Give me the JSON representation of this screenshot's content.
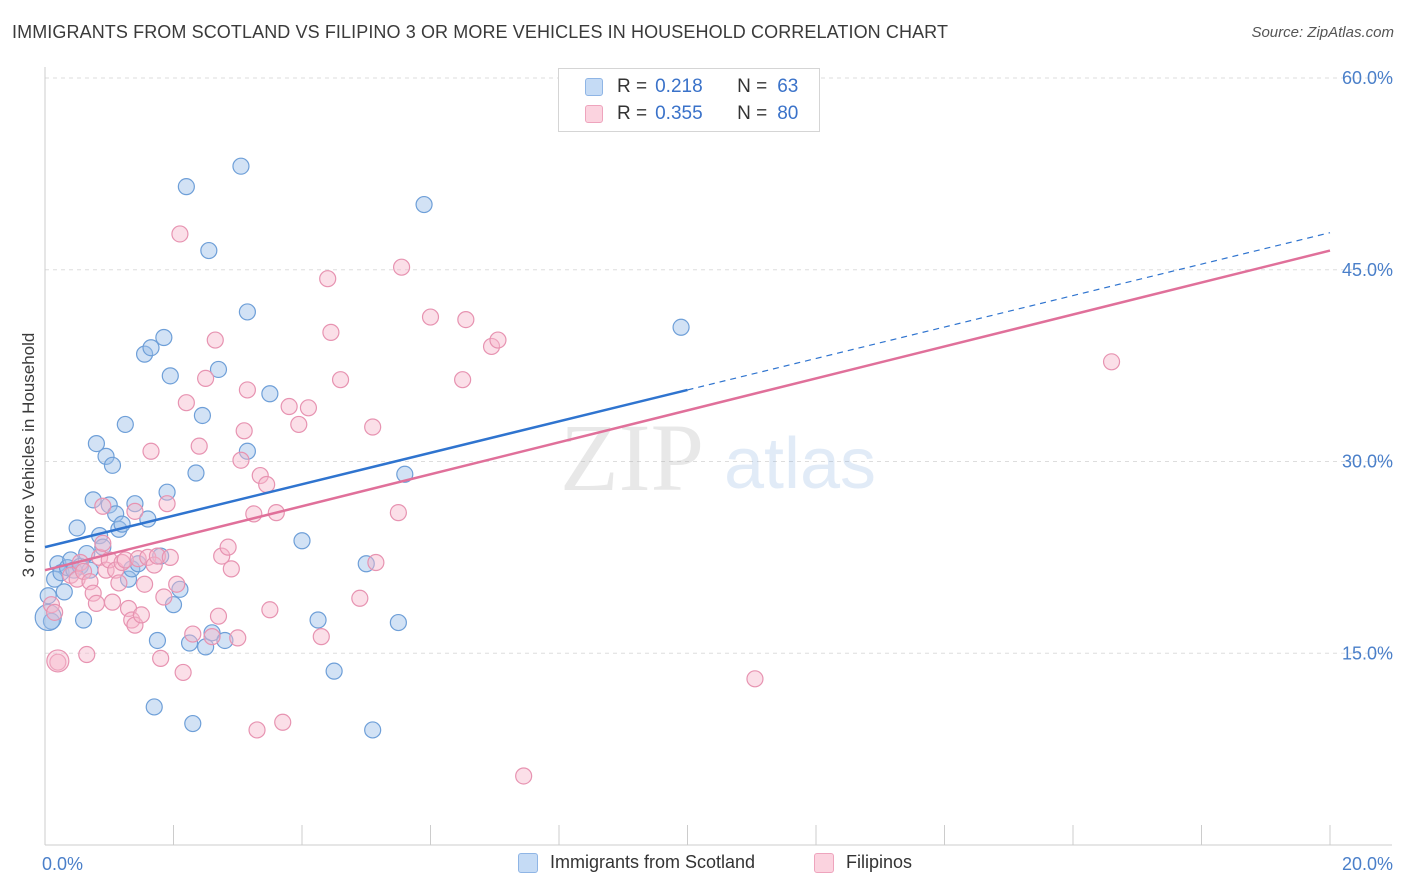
{
  "header": {
    "title": "IMMIGRANTS FROM SCOTLAND VS FILIPINO 3 OR MORE VEHICLES IN HOUSEHOLD CORRELATION CHART",
    "source": "Source: ZipAtlas.com"
  },
  "watermark": {
    "zip": "ZIP",
    "atlas": "atlas"
  },
  "legend": {
    "rows": [
      {
        "r_label": "R =",
        "r_value": "0.218",
        "n_label": "N =",
        "n_value": "63",
        "color": "#9bbfe9"
      },
      {
        "r_label": "R =",
        "r_value": "0.355",
        "n_label": "N =",
        "n_value": "80",
        "color": "#f3afc5"
      }
    ]
  },
  "bottom_legend": {
    "items": [
      {
        "label": "Immigrants from Scotland",
        "color": "#9bbfe9"
      },
      {
        "label": "Filipinos",
        "color": "#f3afc5"
      }
    ]
  },
  "colors": {
    "blue_fill": "#9bbfe9",
    "blue_stroke": "#6e9fd8",
    "blue_line": "#2f74cf",
    "pink_fill": "#f6b9cd",
    "pink_stroke": "#e793b1",
    "pink_line": "#e0709a",
    "tick_text": "#4a7fc9",
    "grid": "#dddddd"
  },
  "chart_data": {
    "type": "scatter",
    "title": "IMMIGRANTS FROM SCOTLAND VS FILIPINO 3 OR MORE VEHICLES IN HOUSEHOLD CORRELATION CHART",
    "ylabel": "3 or more Vehicles in Household",
    "xlabel": "",
    "xlim": [
      0,
      20
    ],
    "ylim": [
      0,
      60
    ],
    "x_tick_labels": [
      "0.0%",
      "20.0%"
    ],
    "y_ticks": [
      15,
      30,
      45,
      60
    ],
    "y_tick_labels": [
      "15.0%",
      "30.0%",
      "45.0%",
      "60.0%"
    ],
    "grid": true,
    "legend_position": "top-center",
    "series": [
      {
        "name": "Immigrants from Scotland",
        "r": 0.218,
        "n": 63,
        "trend": {
          "x0": 0,
          "y0": 23.3,
          "x1": 20,
          "y1": 47.9,
          "solid_until_x": 10
        },
        "points": [
          [
            0.05,
            19.5
          ],
          [
            0.1,
            17.5
          ],
          [
            0.15,
            20.8
          ],
          [
            0.2,
            22.0
          ],
          [
            0.25,
            21.3
          ],
          [
            0.3,
            19.8
          ],
          [
            0.35,
            21.7
          ],
          [
            0.4,
            22.3
          ],
          [
            0.45,
            21.5
          ],
          [
            0.5,
            24.8
          ],
          [
            0.55,
            21.8
          ],
          [
            0.6,
            17.6
          ],
          [
            0.65,
            22.8
          ],
          [
            0.7,
            21.5
          ],
          [
            0.75,
            27.0
          ],
          [
            0.8,
            31.4
          ],
          [
            0.85,
            24.2
          ],
          [
            0.9,
            23.3
          ],
          [
            0.95,
            30.4
          ],
          [
            1.0,
            26.6
          ],
          [
            1.05,
            29.7
          ],
          [
            1.1,
            25.9
          ],
          [
            1.15,
            24.7
          ],
          [
            1.2,
            25.1
          ],
          [
            1.25,
            32.9
          ],
          [
            1.3,
            20.8
          ],
          [
            1.35,
            21.6
          ],
          [
            1.4,
            26.7
          ],
          [
            1.45,
            22.0
          ],
          [
            1.55,
            38.4
          ],
          [
            1.6,
            25.5
          ],
          [
            1.65,
            38.9
          ],
          [
            1.7,
            10.8
          ],
          [
            1.75,
            16.0
          ],
          [
            1.8,
            22.6
          ],
          [
            1.85,
            39.7
          ],
          [
            1.9,
            27.6
          ],
          [
            1.95,
            36.7
          ],
          [
            2.0,
            18.8
          ],
          [
            2.1,
            20.0
          ],
          [
            2.2,
            51.5
          ],
          [
            2.25,
            15.8
          ],
          [
            2.3,
            9.5
          ],
          [
            2.35,
            29.1
          ],
          [
            2.45,
            33.6
          ],
          [
            2.5,
            15.5
          ],
          [
            2.55,
            46.5
          ],
          [
            2.6,
            16.6
          ],
          [
            2.7,
            37.2
          ],
          [
            2.8,
            16.0
          ],
          [
            3.05,
            53.1
          ],
          [
            3.15,
            41.7
          ],
          [
            3.15,
            30.8
          ],
          [
            3.5,
            35.3
          ],
          [
            4.0,
            23.8
          ],
          [
            4.25,
            17.6
          ],
          [
            4.5,
            13.6
          ],
          [
            5.0,
            22.0
          ],
          [
            5.1,
            9.0
          ],
          [
            5.5,
            17.4
          ],
          [
            5.6,
            29.0
          ],
          [
            5.9,
            50.1
          ],
          [
            9.9,
            40.5
          ]
        ]
      },
      {
        "name": "Filipinos",
        "r": 0.355,
        "n": 80,
        "trend": {
          "x0": 0,
          "y0": 21.5,
          "x1": 20,
          "y1": 46.5
        },
        "points": [
          [
            0.1,
            18.8
          ],
          [
            0.15,
            18.2
          ],
          [
            0.2,
            14.3
          ],
          [
            0.4,
            21.1
          ],
          [
            0.5,
            20.8
          ],
          [
            0.55,
            22.1
          ],
          [
            0.6,
            21.4
          ],
          [
            0.65,
            14.9
          ],
          [
            0.7,
            20.6
          ],
          [
            0.75,
            19.7
          ],
          [
            0.8,
            18.9
          ],
          [
            0.85,
            22.5
          ],
          [
            0.9,
            23.6
          ],
          [
            0.95,
            21.5
          ],
          [
            1.0,
            22.3
          ],
          [
            1.05,
            19.0
          ],
          [
            1.1,
            21.5
          ],
          [
            1.15,
            20.5
          ],
          [
            1.2,
            22.1
          ],
          [
            1.25,
            22.3
          ],
          [
            1.3,
            18.5
          ],
          [
            1.35,
            17.6
          ],
          [
            1.4,
            17.2
          ],
          [
            1.45,
            22.4
          ],
          [
            1.5,
            18.0
          ],
          [
            1.55,
            20.4
          ],
          [
            1.6,
            22.5
          ],
          [
            1.65,
            30.8
          ],
          [
            1.7,
            21.9
          ],
          [
            1.75,
            22.6
          ],
          [
            1.8,
            14.6
          ],
          [
            1.85,
            19.4
          ],
          [
            1.9,
            26.7
          ],
          [
            1.95,
            22.5
          ],
          [
            2.05,
            20.4
          ],
          [
            2.1,
            47.8
          ],
          [
            2.15,
            13.5
          ],
          [
            2.2,
            34.6
          ],
          [
            2.3,
            16.5
          ],
          [
            2.4,
            31.2
          ],
          [
            2.5,
            36.5
          ],
          [
            2.6,
            16.3
          ],
          [
            2.65,
            39.5
          ],
          [
            2.7,
            17.9
          ],
          [
            2.75,
            22.6
          ],
          [
            2.85,
            23.3
          ],
          [
            2.9,
            21.6
          ],
          [
            3.0,
            16.2
          ],
          [
            3.05,
            30.1
          ],
          [
            3.1,
            32.4
          ],
          [
            3.15,
            35.6
          ],
          [
            3.25,
            25.9
          ],
          [
            3.3,
            9.0
          ],
          [
            3.35,
            28.9
          ],
          [
            3.45,
            28.2
          ],
          [
            3.5,
            18.4
          ],
          [
            3.6,
            26.0
          ],
          [
            3.7,
            9.6
          ],
          [
            3.8,
            34.3
          ],
          [
            3.95,
            32.9
          ],
          [
            4.1,
            34.2
          ],
          [
            4.3,
            16.3
          ],
          [
            4.4,
            44.3
          ],
          [
            4.45,
            40.1
          ],
          [
            4.6,
            36.4
          ],
          [
            4.9,
            19.3
          ],
          [
            5.1,
            32.7
          ],
          [
            5.15,
            22.1
          ],
          [
            5.5,
            26.0
          ],
          [
            5.55,
            45.2
          ],
          [
            6.0,
            41.3
          ],
          [
            6.5,
            36.4
          ],
          [
            6.55,
            41.1
          ],
          [
            6.95,
            39.0
          ],
          [
            7.05,
            39.5
          ],
          [
            7.45,
            5.4
          ],
          [
            11.05,
            13.0
          ],
          [
            16.6,
            37.8
          ],
          [
            1.4,
            26.1
          ],
          [
            0.9,
            26.5
          ]
        ]
      }
    ]
  }
}
